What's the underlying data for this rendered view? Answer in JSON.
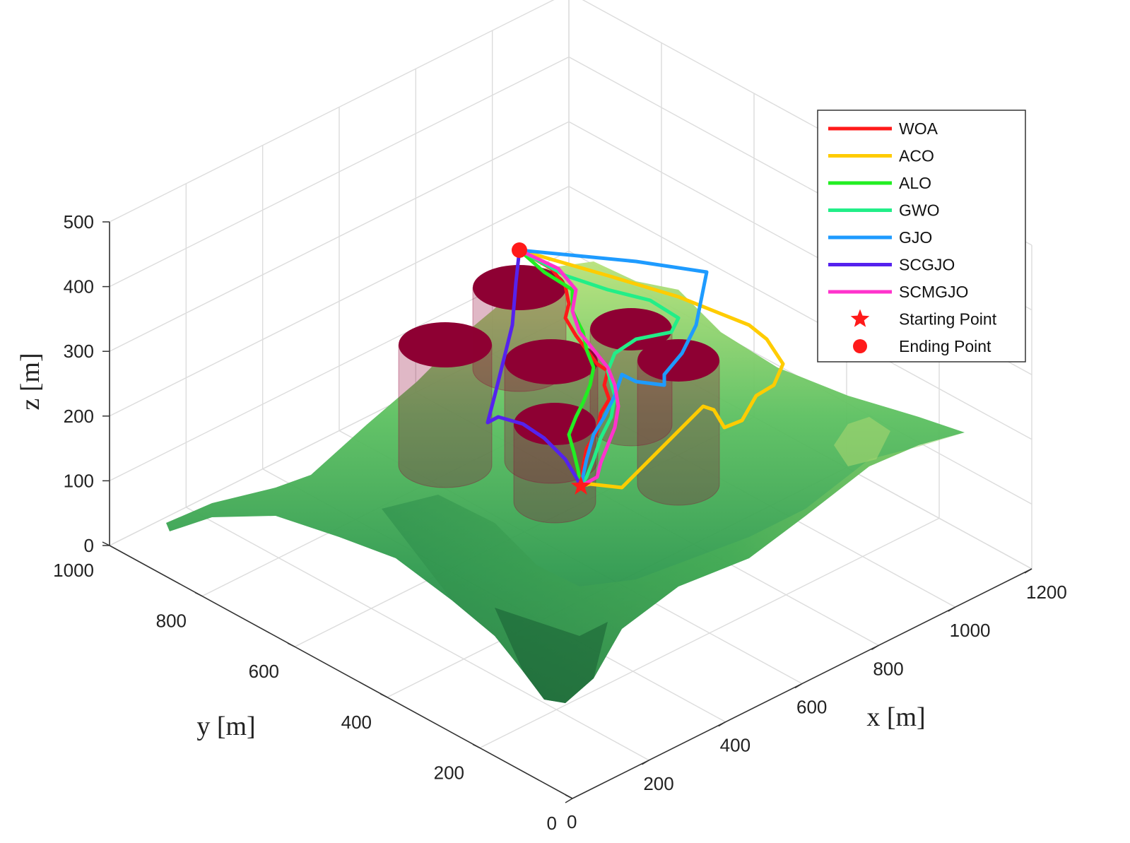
{
  "chart_data": {
    "type": "line",
    "subtype": "3d-path-over-terrain",
    "title": "",
    "xlabel": "x [m]",
    "ylabel": "y [m]",
    "zlabel": "z [m]",
    "xlim": [
      0,
      1200
    ],
    "ylim": [
      0,
      1000
    ],
    "zlim": [
      0,
      500
    ],
    "x_ticks": [
      0,
      200,
      400,
      600,
      800,
      1000,
      1200
    ],
    "y_ticks": [
      0,
      200,
      400,
      600,
      800,
      1000
    ],
    "z_ticks": [
      0,
      100,
      200,
      300,
      400,
      500
    ],
    "grid": true,
    "legend_position": "top-right",
    "colors": {
      "terrain_high": "#9fdc72",
      "terrain_low": "#1f7a45",
      "obstacle": "#8e0033"
    },
    "start_point": {
      "label": "Starting Point",
      "marker": "star",
      "color": "#ff1a1a"
    },
    "end_point": {
      "label": "Ending Point",
      "marker": "circle",
      "color": "#ff1a1a"
    },
    "series": [
      {
        "name": "WOA",
        "color": "#ff1a1a"
      },
      {
        "name": "ACO",
        "color": "#ffcc00"
      },
      {
        "name": "ALO",
        "color": "#22ee22"
      },
      {
        "name": "GWO",
        "color": "#22ee88"
      },
      {
        "name": "GJO",
        "color": "#1e9bff"
      },
      {
        "name": "SCGJO",
        "color": "#5522ee"
      },
      {
        "name": "SCMGJO",
        "color": "#ff33cc"
      }
    ]
  }
}
